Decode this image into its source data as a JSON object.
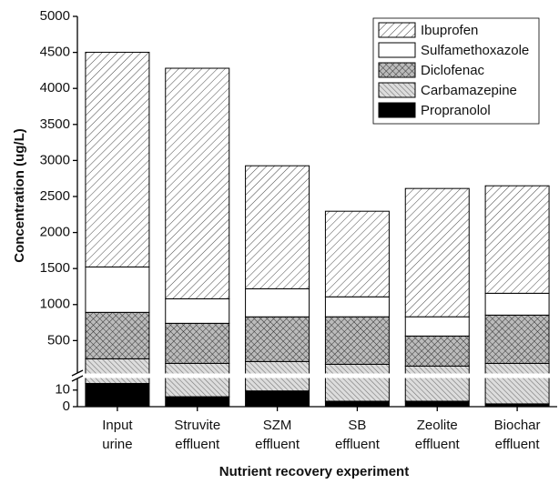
{
  "chart_data": {
    "type": "bar",
    "stacked": true,
    "ylabel": "Concentration (ug/L)",
    "xlabel": "Nutrient recovery experiment",
    "categories": [
      [
        "Input",
        "urine"
      ],
      [
        "Struvite",
        "effluent"
      ],
      [
        "SZM",
        "effluent"
      ],
      [
        "SB",
        "effluent"
      ],
      [
        "Zeolite",
        "effluent"
      ],
      [
        "Biochar",
        "effluent"
      ]
    ],
    "series": [
      {
        "name": "Propranolol",
        "color": "#000000",
        "pattern": "solid",
        "values": [
          14,
          6,
          9.5,
          3.3,
          3.3,
          1.7
        ]
      },
      {
        "name": "Carbamazepine",
        "color": "#bbbbbb",
        "pattern": "backslash",
        "values": [
          233,
          178,
          200,
          168,
          143,
          182
        ]
      },
      {
        "name": "Diclofenac",
        "color": "#999999",
        "pattern": "crosshatch",
        "values": [
          645,
          556,
          620,
          659,
          417,
          670
        ]
      },
      {
        "name": "Sulfamethoxazole",
        "color": "#ffffff",
        "pattern": "solid",
        "values": [
          630,
          340,
          390,
          277,
          267,
          303
        ]
      },
      {
        "name": "Ibuprofen",
        "color": "#ffffff",
        "pattern": "slash",
        "values": [
          2980,
          3200,
          1707,
          1188,
          1781,
          1492
        ]
      }
    ],
    "ylim": [
      50,
      5000
    ],
    "yticks": [
      500,
      1000,
      1500,
      2000,
      2500,
      3000,
      3500,
      4000,
      4500,
      5000
    ],
    "ylim_lower": [
      0,
      17
    ],
    "yticks_lower": [
      0,
      10
    ],
    "legend": "upper right"
  }
}
